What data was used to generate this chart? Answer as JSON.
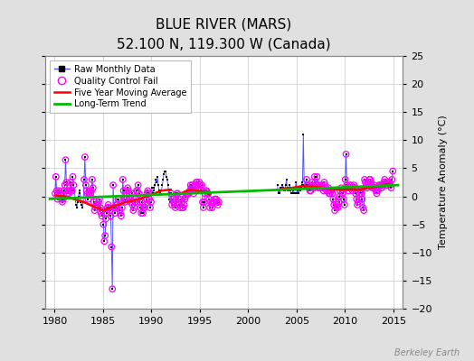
{
  "title": "BLUE RIVER (MARS)",
  "subtitle": "52.100 N, 119.300 W (Canada)",
  "ylabel_right": "Temperature Anomaly (°C)",
  "watermark": "Berkeley Earth",
  "xlim": [
    1979,
    2016
  ],
  "ylim": [
    -20,
    25
  ],
  "yticks": [
    -20,
    -15,
    -10,
    -5,
    0,
    5,
    10,
    15,
    20,
    25
  ],
  "xticks": [
    1980,
    1985,
    1990,
    1995,
    2000,
    2005,
    2010,
    2015
  ],
  "bg_color": "#e0e0e0",
  "plot_bg_color": "#ffffff",
  "grid_color": "#c8c8c8",
  "raw_color": "#5555ff",
  "qc_color": "#ff00ff",
  "moving_avg_color": "#ff0000",
  "trend_color": "#00bb00",
  "raw_data": {
    "t": [
      1980.04,
      1980.12,
      1980.21,
      1980.29,
      1980.37,
      1980.46,
      1980.54,
      1980.62,
      1980.71,
      1980.79,
      1980.87,
      1980.96,
      1981.04,
      1981.12,
      1981.21,
      1981.29,
      1981.37,
      1981.46,
      1981.54,
      1981.62,
      1981.71,
      1981.79,
      1981.87,
      1981.96,
      1982.04,
      1982.12,
      1982.21,
      1982.29,
      1982.37,
      1982.46,
      1982.54,
      1982.62,
      1982.71,
      1982.79,
      1982.87,
      1982.96,
      1983.04,
      1983.12,
      1983.21,
      1983.29,
      1983.37,
      1983.46,
      1983.54,
      1983.62,
      1983.71,
      1983.79,
      1983.87,
      1983.96,
      1984.04,
      1984.12,
      1984.21,
      1984.29,
      1984.37,
      1984.46,
      1984.54,
      1984.62,
      1984.71,
      1984.79,
      1984.87,
      1984.96,
      1985.04,
      1985.12,
      1985.21,
      1985.29,
      1985.37,
      1985.46,
      1985.54,
      1985.62,
      1985.71,
      1985.79,
      1985.87,
      1985.96,
      1986.04,
      1986.12,
      1986.21,
      1986.29,
      1986.37,
      1986.46,
      1986.54,
      1986.62,
      1986.71,
      1986.79,
      1986.87,
      1986.96,
      1987.04,
      1987.12,
      1987.21,
      1987.29,
      1987.37,
      1987.46,
      1987.54,
      1987.62,
      1987.71,
      1987.79,
      1987.87,
      1987.96,
      1988.04,
      1988.12,
      1988.21,
      1988.29,
      1988.37,
      1988.46,
      1988.54,
      1988.62,
      1988.71,
      1988.79,
      1988.87,
      1988.96,
      1989.04,
      1989.12,
      1989.21,
      1989.29,
      1989.37,
      1989.46,
      1989.54,
      1989.62,
      1989.71,
      1989.79,
      1989.87,
      1989.96,
      1990.04,
      1990.12,
      1990.21,
      1990.29,
      1990.37,
      1990.46,
      1990.54,
      1990.62,
      1990.71,
      1990.79,
      1990.87,
      1990.96,
      1991.04,
      1991.12,
      1991.21,
      1991.29,
      1991.37,
      1991.46,
      1991.54,
      1991.62,
      1991.71,
      1991.79,
      1991.87,
      1991.96,
      1992.04,
      1992.12,
      1992.21,
      1992.29,
      1992.37,
      1992.46,
      1992.54,
      1992.62,
      1992.71,
      1992.79,
      1992.87,
      1992.96,
      1993.04,
      1993.12,
      1993.21,
      1993.29,
      1993.37,
      1993.46,
      1993.54,
      1993.62,
      1993.71,
      1993.79,
      1993.87,
      1993.96,
      1994.04,
      1994.12,
      1994.21,
      1994.29,
      1994.37,
      1994.46,
      1994.54,
      1994.62,
      1994.71,
      1994.79,
      1994.87,
      1994.96,
      1995.04,
      1995.12,
      1995.21,
      1995.29,
      1995.37,
      1995.46,
      1995.54,
      1995.62,
      1995.71,
      1995.79,
      1995.87,
      1995.96,
      1996.04,
      1996.12,
      1996.21,
      1996.29,
      1996.37,
      1996.46,
      1996.54,
      1996.62,
      1996.71,
      1996.79,
      1996.87,
      1996.96,
      2003.04,
      2003.12,
      2003.21,
      2003.29,
      2003.37,
      2003.46,
      2003.54,
      2003.62,
      2003.71,
      2003.79,
      2003.87,
      2003.96,
      2004.04,
      2004.12,
      2004.21,
      2004.29,
      2004.37,
      2004.46,
      2004.54,
      2004.62,
      2004.71,
      2004.79,
      2004.87,
      2004.96,
      2005.04,
      2005.12,
      2005.21,
      2005.29,
      2005.37,
      2005.46,
      2005.54,
      2005.62,
      2005.71,
      2005.79,
      2005.87,
      2005.96,
      2006.04,
      2006.12,
      2006.21,
      2006.29,
      2006.37,
      2006.46,
      2006.54,
      2006.62,
      2006.71,
      2006.79,
      2006.87,
      2006.96,
      2007.04,
      2007.12,
      2007.21,
      2007.29,
      2007.37,
      2007.46,
      2007.54,
      2007.62,
      2007.71,
      2007.79,
      2007.87,
      2007.96,
      2008.04,
      2008.12,
      2008.21,
      2008.29,
      2008.37,
      2008.46,
      2008.54,
      2008.62,
      2008.71,
      2008.79,
      2008.87,
      2008.96,
      2009.04,
      2009.12,
      2009.21,
      2009.29,
      2009.37,
      2009.46,
      2009.54,
      2009.62,
      2009.71,
      2009.79,
      2009.87,
      2009.96,
      2010.04,
      2010.12,
      2010.21,
      2010.29,
      2010.37,
      2010.46,
      2010.54,
      2010.62,
      2010.71,
      2010.79,
      2010.87,
      2010.96,
      2011.04,
      2011.12,
      2011.21,
      2011.29,
      2011.37,
      2011.46,
      2011.54,
      2011.62,
      2011.71,
      2011.79,
      2011.87,
      2011.96,
      2012.04,
      2012.12,
      2012.21,
      2012.29,
      2012.37,
      2012.46,
      2012.54,
      2012.62,
      2012.71,
      2012.79,
      2012.87,
      2012.96,
      2013.04,
      2013.12,
      2013.21,
      2013.29,
      2013.37,
      2013.46,
      2013.54,
      2013.62,
      2013.71,
      2013.79,
      2013.87,
      2013.96,
      2014.04,
      2014.12,
      2014.21,
      2014.29,
      2014.37,
      2014.46,
      2014.54,
      2014.62,
      2014.71,
      2014.79,
      2014.87,
      2014.96
    ],
    "v": [
      0.5,
      3.5,
      1.0,
      -0.5,
      0.5,
      1.0,
      0.5,
      0.5,
      -0.5,
      -1.0,
      -0.5,
      1.0,
      2.0,
      6.5,
      2.5,
      0.5,
      1.0,
      0.5,
      1.0,
      2.5,
      1.0,
      1.0,
      3.5,
      2.0,
      1.0,
      -0.5,
      -1.5,
      -2.0,
      -1.0,
      0.0,
      1.0,
      0.5,
      -1.0,
      -1.5,
      -2.0,
      -1.0,
      3.0,
      7.0,
      2.0,
      1.0,
      0.5,
      -0.5,
      0.5,
      1.0,
      0.5,
      1.0,
      3.0,
      1.5,
      -1.0,
      -2.5,
      -2.0,
      -1.5,
      -1.5,
      -1.5,
      -1.0,
      -0.5,
      -2.0,
      -3.0,
      -3.5,
      -2.5,
      -5.0,
      -8.0,
      -7.0,
      -4.0,
      -3.0,
      -2.0,
      -1.5,
      -2.0,
      -2.5,
      -3.5,
      -9.0,
      -16.5,
      2.0,
      -2.0,
      -3.0,
      -2.0,
      -1.5,
      -1.5,
      -0.5,
      -0.5,
      -2.5,
      -3.0,
      -3.5,
      -2.0,
      3.0,
      1.0,
      -0.5,
      -1.0,
      -0.5,
      0.5,
      1.5,
      1.0,
      0.5,
      -0.5,
      -1.0,
      0.5,
      -1.5,
      -2.5,
      -2.0,
      -1.0,
      -0.5,
      1.0,
      1.0,
      2.0,
      0.5,
      -1.0,
      -2.0,
      -3.0,
      -1.0,
      -3.0,
      -2.0,
      -2.0,
      -1.5,
      -0.5,
      0.5,
      1.0,
      0.5,
      -0.5,
      -2.0,
      -1.0,
      1.5,
      0.5,
      1.0,
      1.5,
      2.0,
      3.0,
      2.5,
      3.5,
      2.0,
      1.0,
      0.5,
      1.0,
      1.0,
      2.0,
      3.0,
      4.0,
      4.5,
      4.5,
      3.5,
      3.0,
      2.0,
      0.5,
      -0.5,
      -1.0,
      0.5,
      -1.5,
      -0.5,
      -1.0,
      -1.5,
      -2.0,
      -0.5,
      0.5,
      0.5,
      -0.5,
      -1.5,
      -2.0,
      -0.5,
      -1.0,
      -2.0,
      -2.0,
      -1.5,
      -0.5,
      0.0,
      0.5,
      0.5,
      0.5,
      0.5,
      1.0,
      2.0,
      1.5,
      2.0,
      1.0,
      0.5,
      1.0,
      2.0,
      2.5,
      2.5,
      2.0,
      1.5,
      2.5,
      2.0,
      1.0,
      2.0,
      -1.0,
      -2.0,
      -1.0,
      0.5,
      1.0,
      1.0,
      0.5,
      0.5,
      -0.5,
      -2.0,
      -1.0,
      -1.5,
      -2.0,
      -1.0,
      -1.0,
      -0.5,
      -0.5,
      -0.5,
      -1.0,
      -1.5,
      -1.0,
      2.0,
      0.5,
      1.0,
      0.5,
      1.5,
      1.5,
      2.0,
      1.5,
      1.0,
      1.0,
      2.0,
      3.0,
      1.5,
      1.0,
      1.0,
      2.0,
      1.0,
      0.5,
      0.5,
      1.0,
      0.5,
      0.5,
      1.5,
      2.5,
      0.5,
      1.0,
      0.5,
      1.5,
      1.0,
      1.5,
      2.0,
      2.5,
      11.0,
      2.0,
      1.5,
      2.0,
      3.0,
      2.0,
      2.0,
      1.5,
      1.0,
      1.0,
      2.0,
      2.5,
      1.5,
      1.5,
      3.5,
      2.5,
      2.0,
      3.5,
      2.0,
      1.5,
      1.5,
      1.5,
      2.0,
      2.0,
      1.5,
      1.0,
      2.5,
      2.0,
      1.5,
      1.0,
      1.0,
      1.5,
      0.5,
      0.5,
      1.0,
      1.0,
      0.5,
      -0.5,
      -1.5,
      -2.5,
      -1.0,
      -2.0,
      -1.5,
      -2.0,
      -1.0,
      0.0,
      1.0,
      1.5,
      0.5,
      0.5,
      -0.5,
      -1.5,
      3.0,
      7.5,
      2.0,
      1.5,
      1.0,
      1.5,
      2.0,
      2.0,
      1.5,
      1.0,
      1.5,
      2.0,
      1.5,
      0.5,
      -0.5,
      -1.5,
      -1.0,
      -0.5,
      0.5,
      1.0,
      0.5,
      -0.5,
      -2.0,
      -2.5,
      3.0,
      2.5,
      2.0,
      1.5,
      2.5,
      2.5,
      3.0,
      3.0,
      2.5,
      2.0,
      1.5,
      1.5,
      2.0,
      1.5,
      1.0,
      0.5,
      1.0,
      1.5,
      2.0,
      2.0,
      2.0,
      1.5,
      2.0,
      2.0,
      2.5,
      3.0,
      2.5,
      2.0,
      2.0,
      2.5,
      2.5,
      2.5,
      2.0,
      1.5,
      3.0,
      4.5
    ],
    "qc": [
      1,
      1,
      1,
      1,
      1,
      1,
      1,
      1,
      1,
      1,
      1,
      1,
      1,
      1,
      1,
      1,
      1,
      1,
      1,
      1,
      1,
      1,
      1,
      1,
      0,
      0,
      0,
      0,
      0,
      0,
      0,
      0,
      0,
      0,
      0,
      0,
      1,
      1,
      1,
      1,
      1,
      1,
      1,
      1,
      1,
      1,
      1,
      1,
      1,
      1,
      1,
      1,
      1,
      1,
      1,
      1,
      1,
      1,
      1,
      1,
      1,
      1,
      1,
      1,
      1,
      1,
      1,
      1,
      1,
      1,
      1,
      1,
      1,
      1,
      1,
      1,
      1,
      1,
      1,
      1,
      1,
      1,
      1,
      1,
      1,
      1,
      1,
      1,
      1,
      1,
      1,
      1,
      1,
      1,
      1,
      1,
      1,
      1,
      1,
      1,
      1,
      1,
      1,
      1,
      1,
      1,
      1,
      1,
      1,
      1,
      1,
      1,
      1,
      1,
      1,
      1,
      1,
      1,
      1,
      1,
      0,
      0,
      0,
      0,
      0,
      0,
      0,
      0,
      0,
      0,
      0,
      0,
      0,
      0,
      0,
      0,
      0,
      0,
      0,
      0,
      0,
      0,
      0,
      0,
      1,
      1,
      1,
      1,
      1,
      1,
      1,
      1,
      1,
      1,
      1,
      1,
      1,
      1,
      1,
      1,
      1,
      1,
      1,
      1,
      1,
      1,
      1,
      1,
      1,
      1,
      1,
      1,
      1,
      1,
      1,
      1,
      1,
      1,
      1,
      1,
      1,
      1,
      1,
      1,
      1,
      1,
      1,
      1,
      1,
      1,
      1,
      1,
      1,
      1,
      1,
      1,
      1,
      1,
      1,
      1,
      1,
      1,
      1,
      1,
      0,
      0,
      0,
      0,
      0,
      0,
      0,
      0,
      0,
      0,
      0,
      0,
      0,
      0,
      0,
      0,
      0,
      0,
      0,
      0,
      0,
      0,
      0,
      0,
      0,
      0,
      0,
      0,
      0,
      0,
      0,
      0,
      0,
      0,
      0,
      0,
      1,
      1,
      1,
      1,
      1,
      1,
      1,
      1,
      1,
      1,
      1,
      1,
      1,
      1,
      1,
      1,
      1,
      1,
      1,
      1,
      1,
      1,
      1,
      1,
      1,
      1,
      1,
      1,
      1,
      1,
      1,
      1,
      1,
      1,
      1,
      1,
      1,
      1,
      1,
      1,
      1,
      1,
      1,
      1,
      1,
      1,
      1,
      1,
      1,
      1,
      1,
      1,
      1,
      1,
      1,
      1,
      1,
      1,
      1,
      1,
      1,
      1,
      1,
      1,
      1,
      1,
      1,
      1,
      1,
      1,
      1,
      1,
      1,
      1,
      1,
      1,
      1,
      1,
      1,
      1,
      1,
      1,
      1,
      1,
      1,
      1,
      1,
      1,
      1,
      1,
      1,
      1,
      1,
      1,
      1,
      1,
      1,
      1,
      1,
      1,
      1,
      1,
      1,
      1,
      1,
      1,
      1,
      1
    ]
  },
  "moving_avg_segments": [
    {
      "x": [
        1980.04,
        1981.0,
        1982.0,
        1983.0,
        1984.0,
        1985.0,
        1985.5,
        1986.0,
        1987.0,
        1988.0,
        1989.0,
        1990.0,
        1991.0,
        1992.0
      ],
      "y": [
        0.2,
        0.0,
        -0.5,
        -1.0,
        -1.8,
        -2.5,
        -2.2,
        -1.8,
        -1.2,
        -0.8,
        -0.3,
        0.3,
        1.0,
        1.2
      ]
    },
    {
      "x": [
        1993.0,
        1994.0,
        1995.5,
        1996.0
      ],
      "y": [
        0.5,
        1.2,
        0.8,
        0.3
      ]
    },
    {
      "x": [
        2003.5,
        2004.5,
        2005.5,
        2006.5,
        2007.5,
        2008.5,
        2009.5,
        2010.5,
        2011.5,
        2012.5,
        2013.5,
        2014.5
      ],
      "y": [
        1.4,
        1.5,
        1.8,
        1.8,
        1.6,
        1.3,
        1.2,
        1.3,
        1.2,
        1.5,
        1.8,
        2.2
      ]
    }
  ],
  "trend": {
    "x": [
      1979.5,
      2015.5
    ],
    "y": [
      -0.45,
      2.0
    ]
  }
}
